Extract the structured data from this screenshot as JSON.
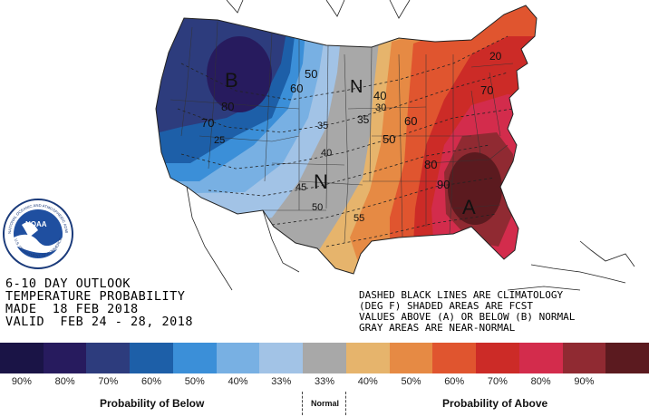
{
  "outlook": {
    "line1": "6-10 DAY OUTLOOK",
    "line2": "TEMPERATURE PROBABILITY",
    "line3": "MADE  18 FEB 2018",
    "line4": "VALID  FEB 24 - 28, 2018"
  },
  "notes": {
    "line1": "DASHED BLACK LINES ARE CLIMATOLOGY",
    "line2": "(DEG F) SHADED AREAS ARE FCST",
    "line3": "VALUES ABOVE (A) OR BELOW (B) NORMAL",
    "line4": "GRAY AREAS ARE NEAR-NORMAL"
  },
  "map_labels": {
    "below": "B",
    "normal_north": "N",
    "normal_south": "N",
    "above": "A"
  },
  "probability_labels": {
    "p_below_80": "80",
    "p_below_70": "70",
    "p_below_60": "60",
    "p_below_50": "50",
    "p_above_40": "40",
    "p_above_50": "50",
    "p_above_60": "60",
    "p_above_70": "70",
    "p_above_80": "80",
    "p_above_90": "90"
  },
  "climatology_labels": {
    "c20": "20",
    "c25": "25",
    "c30": "30",
    "c35a": "35",
    "c35b": "35",
    "c40": "40",
    "c45": "45",
    "c50": "50",
    "c55": "55"
  },
  "legend": [
    {
      "label": "90%",
      "color": "#1a1446"
    },
    {
      "label": "80%",
      "color": "#271b5e"
    },
    {
      "label": "70%",
      "color": "#2d3c7d"
    },
    {
      "label": "60%",
      "color": "#1d5fa8"
    },
    {
      "label": "50%",
      "color": "#3b8fd8"
    },
    {
      "label": "40%",
      "color": "#78b0e3"
    },
    {
      "label": "33%",
      "color": "#a2c3e6"
    },
    {
      "label": "33%",
      "color": "#a8a8a8"
    },
    {
      "label": "40%",
      "color": "#e6b46c"
    },
    {
      "label": "50%",
      "color": "#e68a44"
    },
    {
      "label": "60%",
      "color": "#e0552f"
    },
    {
      "label": "70%",
      "color": "#cc2b27"
    },
    {
      "label": "80%",
      "color": "#d32c4c"
    },
    {
      "label": "90%",
      "color": "#902a32"
    },
    {
      "label": "",
      "color": "#5b1a1f"
    }
  ],
  "captions": {
    "below": "Probability of Below",
    "normal": "Normal",
    "above": "Probability of Above"
  },
  "logo": {
    "text": "NOAA",
    "ring_text": "NATIONAL OCEANIC AND ATMOSPHERIC ADMINISTRATION",
    "bottom_text": "U.S. DEPARTMENT OF COMMERCE"
  }
}
